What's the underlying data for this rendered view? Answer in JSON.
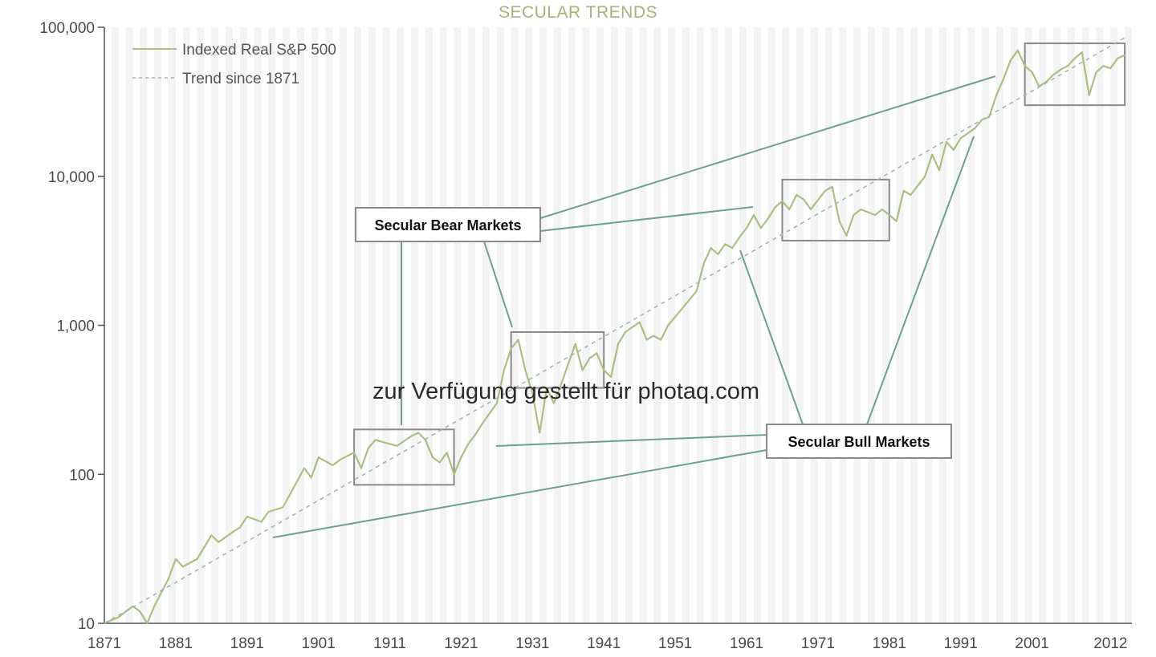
{
  "chart_data": {
    "type": "line",
    "title": "SECULAR TRENDS",
    "xlabel": "",
    "ylabel": "",
    "y_scale": "log",
    "ylim": [
      10,
      100000
    ],
    "xlim": [
      1871,
      2015
    ],
    "y_ticks": [
      10,
      100,
      1000,
      10000,
      100000
    ],
    "y_tick_labels": [
      "10",
      "100",
      "1,000",
      "10,000",
      "100,000"
    ],
    "x_ticks": [
      1871,
      1881,
      1891,
      1901,
      1911,
      1921,
      1931,
      1941,
      1951,
      1961,
      1971,
      1981,
      1991,
      2001,
      2012
    ],
    "x_tick_labels": [
      "1871",
      "1881",
      "1891",
      "1901",
      "1911",
      "1921",
      "1931",
      "1941",
      "1951",
      "1961",
      "1971",
      "1981",
      "1991",
      "2001",
      "2012"
    ],
    "series": [
      {
        "name": "Indexed Real S&P 500",
        "color": "#a9bf85",
        "style": "solid",
        "x": [
          1871,
          1873,
          1874,
          1875,
          1876,
          1877,
          1878,
          1880,
          1881,
          1882,
          1884,
          1886,
          1887,
          1889,
          1890,
          1891,
          1893,
          1894,
          1896,
          1897,
          1899,
          1900,
          1901,
          1903,
          1904,
          1906,
          1907,
          1908,
          1909,
          1910,
          1911,
          1912,
          1914,
          1915,
          1916,
          1917,
          1918,
          1919,
          1920,
          1921,
          1922,
          1923,
          1924,
          1926,
          1927,
          1928,
          1929,
          1930,
          1931,
          1932,
          1933,
          1934,
          1935,
          1936,
          1937,
          1938,
          1939,
          1940,
          1941,
          1942,
          1943,
          1944,
          1946,
          1947,
          1948,
          1949,
          1950,
          1952,
          1954,
          1955,
          1956,
          1957,
          1958,
          1959,
          1960,
          1961,
          1962,
          1963,
          1964,
          1965,
          1966,
          1967,
          1968,
          1969,
          1970,
          1972,
          1973,
          1974,
          1975,
          1976,
          1977,
          1979,
          1980,
          1981,
          1982,
          1983,
          1984,
          1986,
          1987,
          1988,
          1989,
          1990,
          1991,
          1993,
          1994,
          1995,
          1996,
          1997,
          1998,
          1999,
          2000,
          2001,
          2002,
          2003,
          2004,
          2005,
          2006,
          2007,
          2008,
          2009,
          2010,
          2011,
          2012,
          2013,
          2014
        ],
        "values": [
          10,
          11,
          12,
          13,
          12,
          10,
          13,
          20,
          27,
          24,
          27,
          39,
          35,
          41,
          44,
          52,
          48,
          56,
          60,
          73,
          110,
          95,
          130,
          115,
          125,
          140,
          110,
          150,
          170,
          165,
          160,
          155,
          180,
          190,
          170,
          130,
          120,
          140,
          100,
          130,
          160,
          185,
          220,
          300,
          500,
          700,
          800,
          500,
          350,
          190,
          380,
          300,
          400,
          550,
          750,
          500,
          600,
          650,
          500,
          450,
          750,
          900,
          1050,
          800,
          850,
          800,
          1000,
          1300,
          1700,
          2600,
          3300,
          3000,
          3500,
          3300,
          3900,
          4500,
          5500,
          4500,
          5200,
          6200,
          6800,
          6000,
          7500,
          7000,
          6000,
          8000,
          8500,
          5000,
          4000,
          5500,
          6000,
          5500,
          6000,
          5500,
          5000,
          8000,
          7500,
          10000,
          14000,
          11000,
          17000,
          15000,
          18000,
          21000,
          24000,
          25000,
          35000,
          45000,
          60000,
          70000,
          55000,
          50000,
          40000,
          43000,
          48000,
          52000,
          55000,
          62000,
          68000,
          35000,
          50000,
          55000,
          53000,
          62000,
          65000
        ]
      },
      {
        "name": "Trend since 1871",
        "color": "#9fb7b2",
        "style": "dashed",
        "x": [
          1871,
          2014
        ],
        "values": [
          10,
          85000
        ]
      }
    ],
    "legend": {
      "position": "top-left",
      "entries": [
        "Indexed Real S&P 500",
        "Trend since 1871"
      ]
    },
    "annotations": {
      "bear_label": "Secular Bear Markets",
      "bull_label": "Secular Bull Markets",
      "bear_periods": [
        {
          "x": [
            1906,
            1920
          ],
          "y": [
            85,
            200
          ]
        },
        {
          "x": [
            1928,
            1941
          ],
          "y": [
            380,
            900
          ]
        },
        {
          "x": [
            1966,
            1981
          ],
          "y": [
            3700,
            9500
          ]
        },
        {
          "x": [
            2000,
            2014
          ],
          "y": [
            30000,
            78000
          ]
        }
      ],
      "bull_periods_bands": [
        [
          1871,
          1906
        ],
        [
          1921,
          1928
        ],
        [
          1942,
          1965
        ],
        [
          1982,
          1999
        ]
      ]
    },
    "grid": false,
    "background_bands": true
  },
  "watermark": "zur Verfügung gestellt für photaq.com",
  "colors": {
    "series_line": "#a9bf85",
    "trend_line": "#9fb7b2",
    "callout_line": "#6f9d97",
    "box_border": "#8a8a8a",
    "background_band": "#f3f3f3",
    "title": "#a5b37a"
  }
}
